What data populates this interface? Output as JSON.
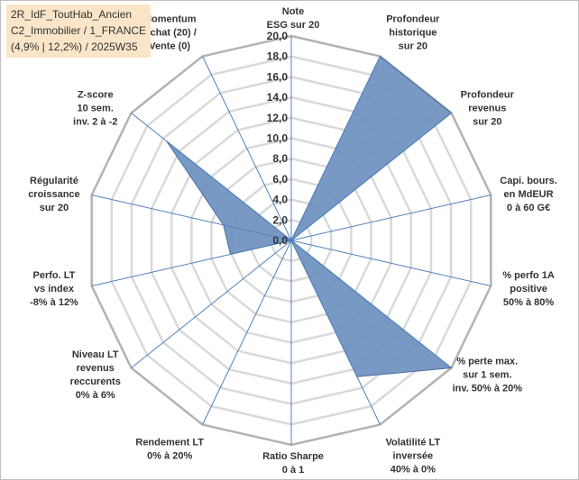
{
  "info_box": {
    "line1": "2R_IdF_ToutHab_Ancien",
    "line2": "C2_Immobilier / 1_FRANCE",
    "line3": "(4,9% | 12,2%) / 2025W35"
  },
  "chart_data": {
    "type": "radar",
    "title": "",
    "rlim": [
      0,
      20
    ],
    "ticks": [
      "0,0",
      "2,0",
      "4,0",
      "6,0",
      "8,0",
      "10,0",
      "12,0",
      "14,0",
      "16,0",
      "18,0",
      "20,0"
    ],
    "grid": true,
    "axes": [
      {
        "label": [
          "Note",
          "ESG sur 20"
        ],
        "value": 0.0
      },
      {
        "label": [
          "Profondeur",
          "historique",
          "sur 20"
        ],
        "value": 20.0
      },
      {
        "label": [
          "Profondeur",
          "revenus",
          "sur 20"
        ],
        "value": 20.0
      },
      {
        "label": [
          "Capi. bours.",
          "en MdEUR",
          "0 à 60 G€"
        ],
        "value": 0.0
      },
      {
        "label": [
          "% perfo 1A",
          "positive",
          "50% à 80%"
        ],
        "value": 0.0
      },
      {
        "label": [
          "% perte max.",
          "sur 1 sem.",
          "inv. 50% à 20%"
        ],
        "value": 20.0
      },
      {
        "label": [
          "Volatilité LT",
          "inversée",
          "40% à 0%"
        ],
        "value": 14.8
      },
      {
        "label": [
          "Ratio Sharpe",
          "0 à 1"
        ],
        "value": 0.0
      },
      {
        "label": [
          "Rendement LT",
          "0% à 20%"
        ],
        "value": 0.0
      },
      {
        "label": [
          "Niveau LT",
          "revenus",
          "reccurents",
          "0% à 6%"
        ],
        "value": 0.0
      },
      {
        "label": [
          "Perfo. LT",
          "vs index",
          "-8% à 12%"
        ],
        "value": 6.1
      },
      {
        "label": [
          "Régularité",
          "croissance",
          "sur 20"
        ],
        "value": 6.8
      },
      {
        "label": [
          "Z-score",
          "10 sem.",
          "inv. 2 à -2"
        ],
        "value": 15.6
      },
      {
        "label": [
          "Momentum",
          "Achat (20) /",
          "Vente (0)"
        ],
        "value": 0.0
      }
    ],
    "series": [
      {
        "values": [
          0.0,
          20.0,
          20.0,
          0.0,
          0.0,
          20.0,
          14.8,
          0.0,
          0.0,
          0.0,
          6.1,
          6.8,
          15.6,
          0.0
        ]
      }
    ]
  },
  "colors": {
    "fill": "#6a8ebf",
    "stroke": "#4a6f9f",
    "axis": "#4f81bd",
    "grid": "#d9d9d9",
    "outer_ring": "#b3b3b3"
  }
}
